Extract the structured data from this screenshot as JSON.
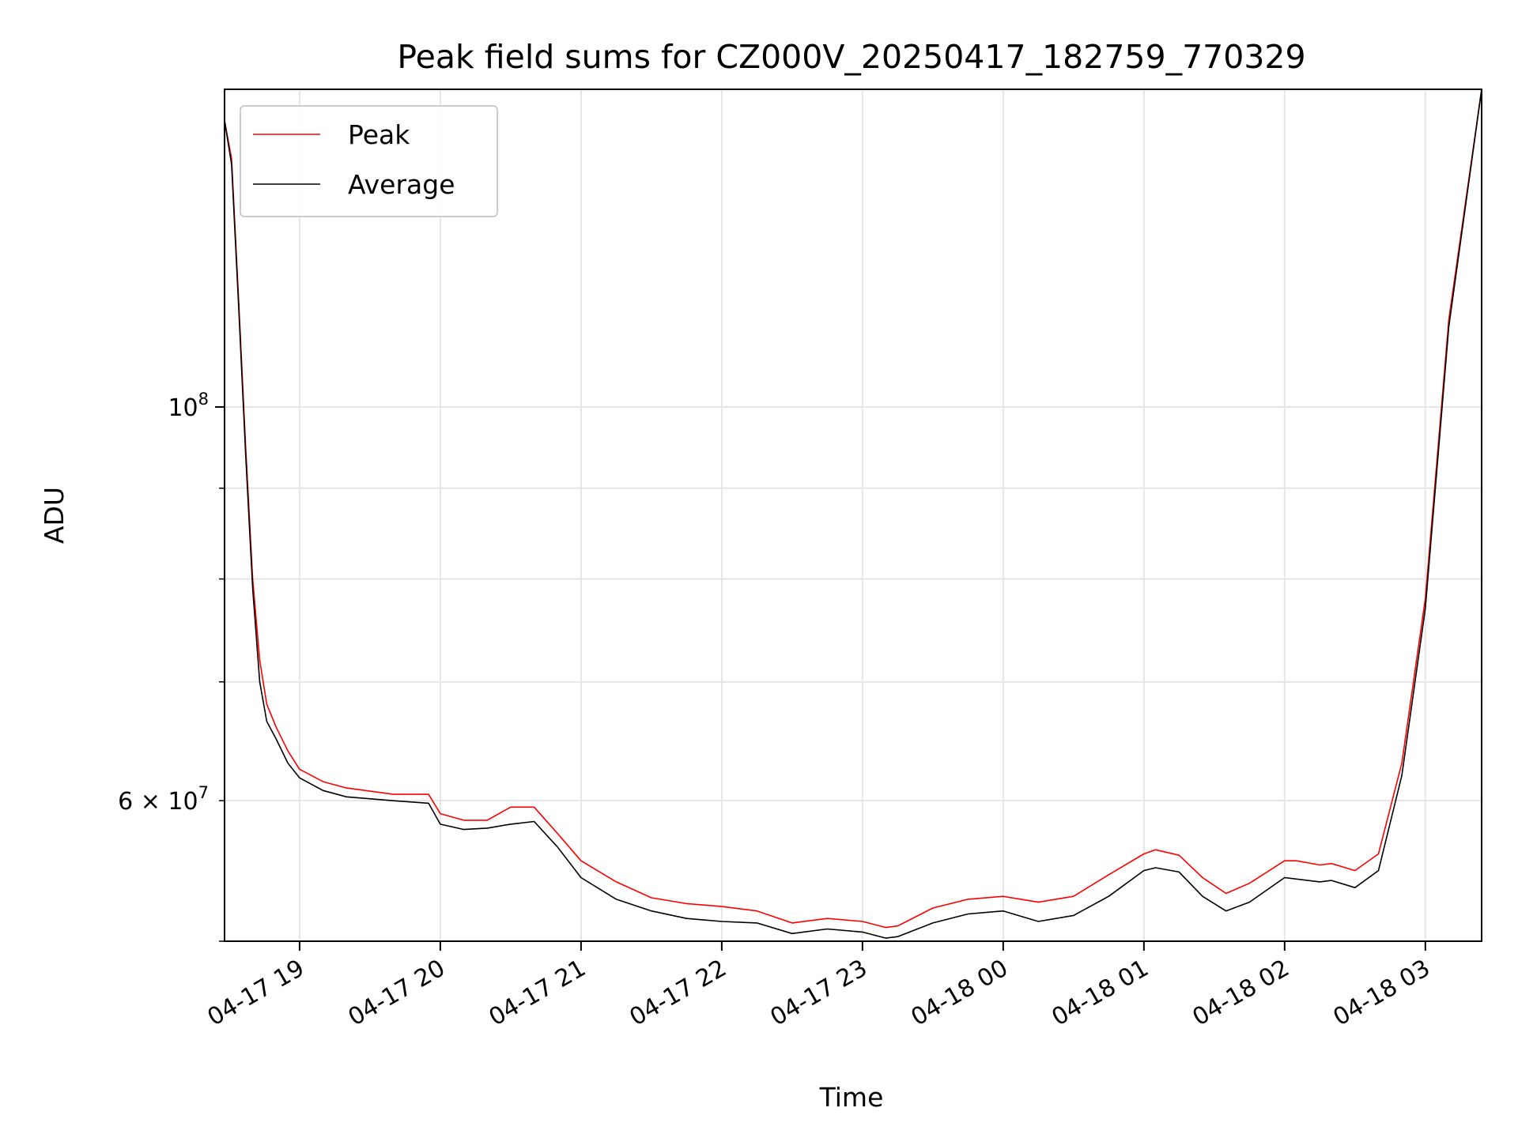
{
  "chart_data": {
    "type": "line",
    "title": "Peak field sums for CZ000V_20250417_182759_770329",
    "xlabel": "Time",
    "ylabel": "ADU",
    "y_scale": "log",
    "grid": true,
    "legend": {
      "placement": "upper-left",
      "entries": [
        "Peak",
        "Average"
      ]
    },
    "xlim": [
      "2025-04-17 18:28",
      "2025-04-18 03:24"
    ],
    "ylim": [
      50000000,
      151000000
    ],
    "x_ticks": [
      "04-17 19",
      "04-17 20",
      "04-17 21",
      "04-17 22",
      "04-17 23",
      "04-18 00",
      "04-18 01",
      "04-18 02",
      "04-18 03"
    ],
    "x_tick_times": [
      "2025-04-17 19:00",
      "2025-04-17 20:00",
      "2025-04-17 21:00",
      "2025-04-17 22:00",
      "2025-04-17 23:00",
      "2025-04-18 00:00",
      "2025-04-18 01:00",
      "2025-04-18 02:00",
      "2025-04-18 03:00"
    ],
    "y_major_ticks": [
      {
        "value": 100000000,
        "label": "10",
        "sup": "8"
      }
    ],
    "y_minor_ticks": [
      {
        "value": 60000000,
        "label": "6 × 10",
        "sup": "7"
      }
    ],
    "y_minor_values": [
      50000000,
      60000000,
      70000000,
      80000000,
      90000000
    ],
    "series": [
      {
        "name": "Peak",
        "color": "#ff0000",
        "x": [
          "2025-04-17 18:28",
          "2025-04-17 18:31",
          "2025-04-17 18:34",
          "2025-04-17 18:37",
          "2025-04-17 18:40",
          "2025-04-17 18:43",
          "2025-04-17 18:46",
          "2025-04-17 18:50",
          "2025-04-17 18:55",
          "2025-04-17 19:00",
          "2025-04-17 19:10",
          "2025-04-17 19:20",
          "2025-04-17 19:40",
          "2025-04-17 19:55",
          "2025-04-17 20:00",
          "2025-04-17 20:10",
          "2025-04-17 20:20",
          "2025-04-17 20:30",
          "2025-04-17 20:40",
          "2025-04-17 20:50",
          "2025-04-17 21:00",
          "2025-04-17 21:15",
          "2025-04-17 21:30",
          "2025-04-17 21:45",
          "2025-04-17 22:00",
          "2025-04-17 22:15",
          "2025-04-17 22:30",
          "2025-04-17 22:45",
          "2025-04-17 23:00",
          "2025-04-17 23:10",
          "2025-04-17 23:15",
          "2025-04-17 23:30",
          "2025-04-17 23:45",
          "2025-04-18 00:00",
          "2025-04-18 00:15",
          "2025-04-18 00:30",
          "2025-04-18 00:45",
          "2025-04-18 01:00",
          "2025-04-18 01:05",
          "2025-04-18 01:15",
          "2025-04-18 01:25",
          "2025-04-18 01:35",
          "2025-04-18 01:45",
          "2025-04-18 02:00",
          "2025-04-18 02:05",
          "2025-04-18 02:15",
          "2025-04-18 02:20",
          "2025-04-18 02:30",
          "2025-04-18 02:40",
          "2025-04-18 02:50",
          "2025-04-18 03:00",
          "2025-04-18 03:10",
          "2025-04-18 03:24"
        ],
        "values": [
          145000000,
          138000000,
          115000000,
          95000000,
          80000000,
          72000000,
          68000000,
          66000000,
          64000000,
          62500000,
          61500000,
          61000000,
          60500000,
          60500000,
          59000000,
          58500000,
          58500000,
          59500000,
          59500000,
          57500000,
          55500000,
          54000000,
          52900000,
          52500000,
          52300000,
          52000000,
          51200000,
          51500000,
          51300000,
          50900000,
          51000000,
          52200000,
          52800000,
          53000000,
          52600000,
          53000000,
          54500000,
          56000000,
          56300000,
          55900000,
          54300000,
          53200000,
          53900000,
          55500000,
          55500000,
          55200000,
          55300000,
          54800000,
          56000000,
          63000000,
          78000000,
          112000000,
          151000000
        ]
      },
      {
        "name": "Average",
        "color": "#000000",
        "x": [
          "2025-04-17 18:28",
          "2025-04-17 18:31",
          "2025-04-17 18:34",
          "2025-04-17 18:37",
          "2025-04-17 18:40",
          "2025-04-17 18:43",
          "2025-04-17 18:46",
          "2025-04-17 18:50",
          "2025-04-17 18:55",
          "2025-04-17 19:00",
          "2025-04-17 19:10",
          "2025-04-17 19:20",
          "2025-04-17 19:40",
          "2025-04-17 19:55",
          "2025-04-17 20:00",
          "2025-04-17 20:10",
          "2025-04-17 20:20",
          "2025-04-17 20:30",
          "2025-04-17 20:40",
          "2025-04-17 20:50",
          "2025-04-17 21:00",
          "2025-04-17 21:15",
          "2025-04-17 21:30",
          "2025-04-17 21:45",
          "2025-04-17 22:00",
          "2025-04-17 22:15",
          "2025-04-17 22:30",
          "2025-04-17 22:45",
          "2025-04-17 23:00",
          "2025-04-17 23:10",
          "2025-04-17 23:15",
          "2025-04-17 23:30",
          "2025-04-17 23:45",
          "2025-04-18 00:00",
          "2025-04-18 00:15",
          "2025-04-18 00:30",
          "2025-04-18 00:45",
          "2025-04-18 01:00",
          "2025-04-18 01:05",
          "2025-04-18 01:15",
          "2025-04-18 01:25",
          "2025-04-18 01:35",
          "2025-04-18 01:45",
          "2025-04-18 02:00",
          "2025-04-18 02:05",
          "2025-04-18 02:15",
          "2025-04-18 02:20",
          "2025-04-18 02:30",
          "2025-04-18 02:40",
          "2025-04-18 02:50",
          "2025-04-18 03:00",
          "2025-04-18 03:10",
          "2025-04-18 03:24"
        ],
        "values": [
          145000000,
          137000000,
          114000000,
          94000000,
          79000000,
          70000000,
          66500000,
          65000000,
          63000000,
          61800000,
          60800000,
          60300000,
          60000000,
          59800000,
          58200000,
          57800000,
          57900000,
          58200000,
          58400000,
          56500000,
          54300000,
          52800000,
          52000000,
          51500000,
          51300000,
          51200000,
          50500000,
          50800000,
          50600000,
          50200000,
          50300000,
          51200000,
          51800000,
          52000000,
          51300000,
          51700000,
          53000000,
          54800000,
          55000000,
          54700000,
          53000000,
          52000000,
          52600000,
          54300000,
          54200000,
          54000000,
          54100000,
          53600000,
          54800000,
          62000000,
          77000000,
          111000000,
          151000000
        ]
      }
    ]
  }
}
